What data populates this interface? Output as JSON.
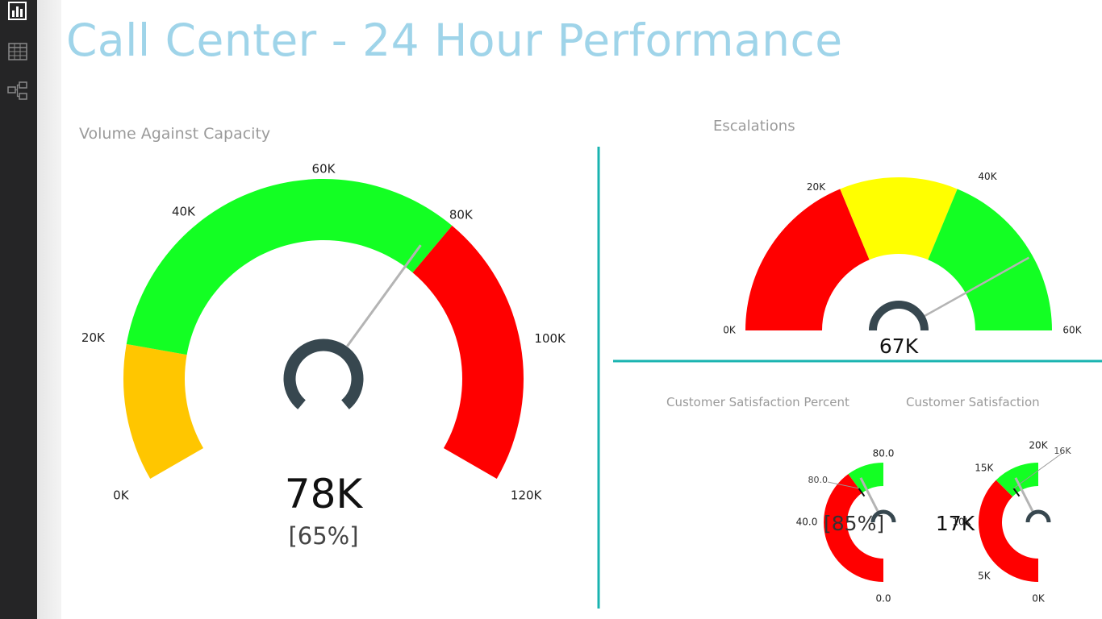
{
  "app": {
    "nav": [
      {
        "name": "report-view-icon",
        "active": true
      },
      {
        "name": "data-view-icon",
        "active": false
      },
      {
        "name": "relationships-view-icon",
        "active": false
      }
    ]
  },
  "report": {
    "title": "Call Center - 24 Hour Performance"
  },
  "colors": {
    "accent_title": "#9fd4e9",
    "divider": "#19b3b0",
    "yellow_orange": "#ffc600",
    "green": "#13ff23",
    "red": "#ff0000",
    "yellow": "#ffff00",
    "needle_hub": "#37474f",
    "needle": "#b4b4b4"
  },
  "chart_data": [
    {
      "type": "gauge",
      "title": "Volume Against Capacity",
      "min": 0,
      "max": 120000,
      "value": 78000,
      "value_label": "78K",
      "percent_label": "[65%]",
      "ticks": [
        "0K",
        "20K",
        "40K",
        "60K",
        "80K",
        "100K",
        "120K"
      ],
      "bands": [
        {
          "from": 0,
          "to": 20000,
          "color": "#ffc600"
        },
        {
          "from": 20000,
          "to": 80000,
          "color": "#13ff23"
        },
        {
          "from": 80000,
          "to": 120000,
          "color": "#ff0000"
        }
      ]
    },
    {
      "type": "gauge",
      "title": "Escalations",
      "min": 0,
      "max": 80000,
      "value": 67000,
      "value_label": "67K",
      "ticks": [
        "0K",
        "20K",
        "40K",
        "60K"
      ],
      "bands": [
        {
          "from": 0,
          "to": 30000,
          "color": "#ff0000"
        },
        {
          "from": 30000,
          "to": 50000,
          "color": "#ffff00"
        },
        {
          "from": 50000,
          "to": 80000,
          "color": "#13ff23"
        }
      ]
    },
    {
      "type": "gauge",
      "title": "Customer Satisfaction Percent",
      "min": 0,
      "max": 100,
      "value": 85,
      "value_label": "[85%]",
      "target": 80,
      "target_label": "80.0",
      "ticks": [
        "0.0",
        "40.0",
        "80.0"
      ],
      "bands": [
        {
          "from": 0,
          "to": 80,
          "color": "#ff0000"
        },
        {
          "from": 80,
          "to": 100,
          "color": "#13ff23"
        }
      ]
    },
    {
      "type": "gauge",
      "title": "Customer Satisfaction",
      "min": 0,
      "max": 20000,
      "value": 17000,
      "value_label": "17K",
      "target": 16000,
      "target_label": "16K",
      "ticks": [
        "0K",
        "5K",
        "10K",
        "15K",
        "20K"
      ],
      "bands": [
        {
          "from": 0,
          "to": 15000,
          "color": "#ff0000"
        },
        {
          "from": 15000,
          "to": 20000,
          "color": "#13ff23"
        }
      ]
    }
  ]
}
